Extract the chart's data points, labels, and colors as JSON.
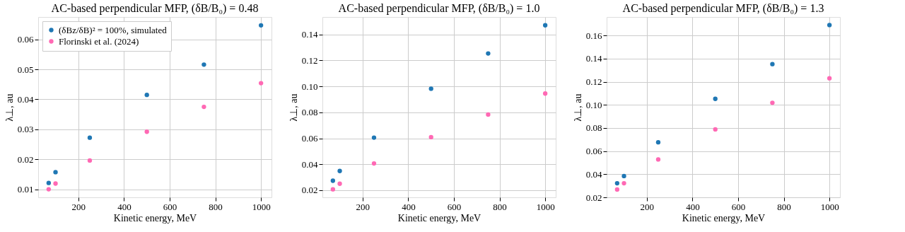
{
  "chart_data": [
    {
      "type": "scatter",
      "title": "AC-based perpendicular MFP, (δB/B₀) = 0.48",
      "xlabel": "Kinetic energy, MeV",
      "ylabel": "λ⊥, au",
      "x": [
        70,
        100,
        250,
        500,
        750,
        1000
      ],
      "series": [
        {
          "name": "(δBz/δB)² = 100%, simulated",
          "color": "#1f77b4",
          "values": [
            0.0121,
            0.0157,
            0.0272,
            0.0415,
            0.0516,
            0.0647
          ]
        },
        {
          "name": "Florinski et al. (2024)",
          "color": "#ff69b4",
          "values": [
            0.01,
            0.0119,
            0.0196,
            0.0292,
            0.0375,
            0.0454
          ]
        }
      ],
      "xlim": [
        24,
        1046
      ],
      "xticks": [
        200,
        400,
        600,
        800,
        1000
      ],
      "ylim": [
        0.0073,
        0.0675
      ],
      "yticks": [
        0.01,
        0.02,
        0.03,
        0.04,
        0.05,
        0.06
      ],
      "grid": true,
      "legend": "top left",
      "marker": "circle"
    },
    {
      "type": "scatter",
      "title": "AC-based perpendicular MFP, (δB/B₀) = 1.0",
      "xlabel": "Kinetic energy, MeV",
      "ylabel": "λ⊥, au",
      "x": [
        70,
        100,
        250,
        500,
        750,
        1000
      ],
      "series": [
        {
          "color": "#1f77b4",
          "values": [
            0.0273,
            0.0348,
            0.0605,
            0.0982,
            0.1254,
            0.1471
          ]
        },
        {
          "color": "#ff69b4",
          "values": [
            0.0207,
            0.025,
            0.0406,
            0.0609,
            0.0783,
            0.0945
          ]
        }
      ],
      "xlim": [
        24,
        1046
      ],
      "xticks": [
        200,
        400,
        600,
        800,
        1000
      ],
      "ylim": [
        0.0145,
        0.1535
      ],
      "yticks": [
        0.02,
        0.04,
        0.06,
        0.08,
        {
          "value": 0.1,
          "label": "0.10"
        },
        0.12,
        0.14
      ],
      "grid": true,
      "marker": "circle"
    },
    {
      "type": "scatter",
      "title": "AC-based perpendicular MFP, (δB/B₀) = 1.3",
      "xlabel": "Kinetic energy, MeV",
      "ylabel": "λ⊥, au",
      "x": [
        70,
        100,
        250,
        500,
        750,
        1000
      ],
      "series": [
        {
          "color": "#1f77b4",
          "values": [
            0.0322,
            0.0384,
            0.0676,
            0.1052,
            0.1352,
            0.169
          ]
        },
        {
          "color": "#ff69b4",
          "values": [
            0.0268,
            0.0322,
            0.0528,
            0.0788,
            0.1018,
            0.123
          ]
        }
      ],
      "xlim": [
        24,
        1046
      ],
      "xticks": [
        200,
        400,
        600,
        800,
        1000
      ],
      "ylim": [
        0.02,
        0.176
      ],
      "yticks": [
        0.02,
        0.04,
        0.06,
        0.08,
        {
          "value": 0.1,
          "label": "0.10"
        },
        0.12,
        0.14,
        0.16
      ],
      "grid": true,
      "marker": "circle"
    }
  ]
}
